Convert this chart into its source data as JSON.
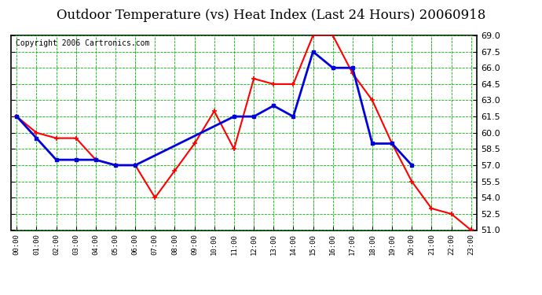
{
  "title": "Outdoor Temperature (vs) Heat Index (Last 24 Hours) 20060918",
  "copyright": "Copyright 2006 Cartronics.com",
  "hours": [
    "00:00",
    "01:00",
    "02:00",
    "03:00",
    "04:00",
    "05:00",
    "06:00",
    "07:00",
    "08:00",
    "09:00",
    "10:00",
    "11:00",
    "12:00",
    "13:00",
    "14:00",
    "15:00",
    "16:00",
    "17:00",
    "18:00",
    "19:00",
    "20:00",
    "21:00",
    "22:00",
    "23:00"
  ],
  "temp": [
    61.5,
    60.0,
    59.5,
    59.5,
    57.5,
    57.0,
    57.0,
    54.0,
    56.5,
    59.0,
    62.0,
    58.5,
    65.0,
    64.5,
    64.5,
    69.0,
    69.0,
    65.5,
    63.0,
    59.0,
    55.5,
    53.0,
    52.5,
    51.0
  ],
  "heat_index": [
    61.5,
    59.5,
    57.5,
    57.5,
    57.5,
    57.0,
    57.0,
    null,
    null,
    null,
    null,
    61.5,
    61.5,
    62.5,
    61.5,
    67.5,
    66.0,
    66.0,
    59.0,
    59.0,
    57.0,
    null,
    null,
    null
  ],
  "ylim": [
    51.0,
    69.0
  ],
  "yticks": [
    51.0,
    52.5,
    54.0,
    55.5,
    57.0,
    58.5,
    60.0,
    61.5,
    63.0,
    64.5,
    66.0,
    67.5,
    69.0
  ],
  "temp_color": "#ff0000",
  "heat_index_color": "#0000dd",
  "grid_color": "#00bb00",
  "bg_color": "#ffffff",
  "title_fontsize": 12,
  "copyright_fontsize": 7,
  "marker_size": 5,
  "linewidth": 1.5
}
